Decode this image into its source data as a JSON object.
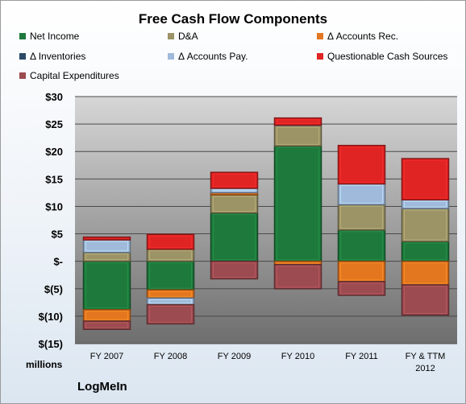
{
  "chart_data": {
    "type": "bar",
    "stacked": true,
    "title": "Free Cash Flow Components",
    "units_label": "millions",
    "categories": [
      "FY 2007",
      "FY 2008",
      "FY 2009",
      "FY 2010",
      "FY 2011",
      "FY & TTM 2012"
    ],
    "ylim": [
      -15,
      30
    ],
    "yticks": [
      30,
      25,
      20,
      15,
      10,
      5,
      0,
      -5,
      -10,
      -15
    ],
    "ytick_labels": [
      "$30",
      "$25",
      "$20",
      "$15",
      "$10",
      "$5",
      "$-",
      "$(5)",
      "$(10)",
      "$(15)"
    ],
    "grid": true,
    "legend_position": "top",
    "series": [
      {
        "name": "Net Income",
        "color": "#1e7a3c",
        "values": [
          -8.8,
          -5.2,
          8.8,
          21.0,
          5.7,
          3.6
        ]
      },
      {
        "name": "D&A",
        "color": "#9c9366",
        "values": [
          1.6,
          2.2,
          3.3,
          3.7,
          4.6,
          6.0
        ]
      },
      {
        "name": "Δ Accounts Rec.",
        "color": "#e3771f",
        "values": [
          -2.1,
          -1.5,
          0.4,
          -0.6,
          -3.7,
          -4.3
        ]
      },
      {
        "name": "Δ Inventories",
        "color": "#2c4a68",
        "values": [
          0,
          0,
          0,
          0,
          0,
          0
        ]
      },
      {
        "name": "Δ Accounts Pay.",
        "color": "#9fbadb",
        "values": [
          2.3,
          -1.2,
          0.8,
          0.1,
          3.8,
          1.6
        ]
      },
      {
        "name": "Questionable Cash Sources",
        "color": "#e02424",
        "values": [
          0.5,
          2.7,
          2.9,
          1.3,
          7.0,
          7.5
        ]
      },
      {
        "name": "Capital Expenditures",
        "color": "#9c4b50",
        "values": [
          -1.5,
          -3.5,
          -3.2,
          -4.4,
          -2.5,
          -5.5
        ]
      }
    ]
  },
  "footer": {
    "brand": "LogMeIn"
  }
}
